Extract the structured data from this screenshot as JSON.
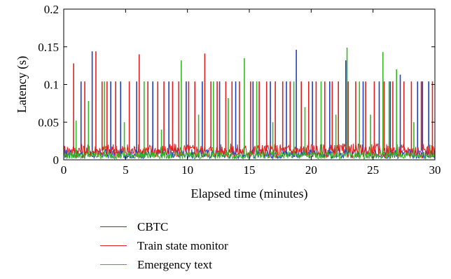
{
  "chart_data": {
    "type": "line",
    "xlabel": "Elapsed time (minutes)",
    "ylabel": "Latency (s)",
    "xlim": [
      0,
      30
    ],
    "ylim": [
      0,
      0.2
    ],
    "xticks": [
      0,
      5,
      10,
      15,
      20,
      25,
      30
    ],
    "xtick_labels": [
      "0",
      "5",
      "10",
      "15",
      "20",
      "25",
      "30"
    ],
    "yticks": [
      0,
      0.05,
      0.1,
      0.15,
      0.2
    ],
    "ytick_labels": [
      "0",
      "0.05",
      "0.1",
      "0.15",
      "0.2"
    ],
    "grid": false,
    "legend_position": "below",
    "series": [
      {
        "name": "CBTC",
        "color": "#1f3fbf",
        "baseline": 0.008,
        "spikes": [
          [
            1.4,
            0.104
          ],
          [
            2.3,
            0.144
          ],
          [
            3.8,
            0.104
          ],
          [
            4.6,
            0.104
          ],
          [
            5.9,
            0.104
          ],
          [
            7.2,
            0.104
          ],
          [
            8.5,
            0.104
          ],
          [
            9.9,
            0.104
          ],
          [
            11.2,
            0.104
          ],
          [
            12.6,
            0.104
          ],
          [
            13.9,
            0.104
          ],
          [
            15.3,
            0.104
          ],
          [
            16.7,
            0.104
          ],
          [
            18.0,
            0.104
          ],
          [
            18.8,
            0.146
          ],
          [
            20.1,
            0.104
          ],
          [
            21.5,
            0.104
          ],
          [
            22.8,
            0.132
          ],
          [
            24.2,
            0.104
          ],
          [
            25.5,
            0.104
          ],
          [
            26.4,
            0.104
          ],
          [
            27.2,
            0.113
          ],
          [
            28.6,
            0.104
          ],
          [
            29.0,
            0.104
          ],
          [
            29.5,
            0.104
          ]
        ]
      },
      {
        "name": "Train state monitor",
        "color": "#e02020",
        "baseline": 0.012,
        "spikes": [
          [
            0.8,
            0.128
          ],
          [
            1.7,
            0.104
          ],
          [
            2.6,
            0.144
          ],
          [
            3.1,
            0.104
          ],
          [
            3.5,
            0.104
          ],
          [
            4.2,
            0.104
          ],
          [
            5.3,
            0.104
          ],
          [
            6.1,
            0.14
          ],
          [
            6.8,
            0.104
          ],
          [
            7.6,
            0.104
          ],
          [
            8.1,
            0.104
          ],
          [
            8.8,
            0.104
          ],
          [
            9.3,
            0.104
          ],
          [
            10.1,
            0.104
          ],
          [
            10.6,
            0.104
          ],
          [
            11.4,
            0.141
          ],
          [
            11.9,
            0.104
          ],
          [
            12.4,
            0.104
          ],
          [
            13.1,
            0.104
          ],
          [
            13.6,
            0.104
          ],
          [
            14.2,
            0.104
          ],
          [
            15.1,
            0.104
          ],
          [
            15.8,
            0.104
          ],
          [
            16.4,
            0.104
          ],
          [
            17.1,
            0.104
          ],
          [
            17.7,
            0.104
          ],
          [
            18.3,
            0.104
          ],
          [
            19.2,
            0.104
          ],
          [
            19.8,
            0.104
          ],
          [
            20.4,
            0.104
          ],
          [
            21.1,
            0.104
          ],
          [
            21.7,
            0.104
          ],
          [
            22.2,
            0.104
          ],
          [
            23.0,
            0.104
          ],
          [
            23.6,
            0.104
          ],
          [
            24.4,
            0.104
          ],
          [
            25.1,
            0.104
          ],
          [
            25.9,
            0.104
          ],
          [
            26.6,
            0.104
          ],
          [
            27.5,
            0.104
          ],
          [
            28.1,
            0.104
          ],
          [
            28.9,
            0.104
          ],
          [
            29.8,
            0.104
          ]
        ]
      },
      {
        "name": "Emergency text",
        "color": "#33bb22",
        "baseline": 0.006,
        "spikes": [
          [
            1.0,
            0.052
          ],
          [
            2.0,
            0.078
          ],
          [
            3.3,
            0.104
          ],
          [
            4.9,
            0.05
          ],
          [
            6.5,
            0.104
          ],
          [
            7.9,
            0.04
          ],
          [
            9.5,
            0.132
          ],
          [
            10.9,
            0.06
          ],
          [
            12.1,
            0.104
          ],
          [
            13.3,
            0.082
          ],
          [
            14.6,
            0.135
          ],
          [
            15.6,
            0.104
          ],
          [
            16.9,
            0.05
          ],
          [
            18.6,
            0.104
          ],
          [
            19.5,
            0.07
          ],
          [
            20.8,
            0.104
          ],
          [
            22.0,
            0.06
          ],
          [
            22.9,
            0.149
          ],
          [
            23.9,
            0.104
          ],
          [
            24.8,
            0.06
          ],
          [
            25.8,
            0.143
          ],
          [
            26.3,
            0.104
          ],
          [
            26.9,
            0.12
          ],
          [
            28.3,
            0.05
          ],
          [
            29.6,
            0.02
          ]
        ]
      }
    ]
  }
}
